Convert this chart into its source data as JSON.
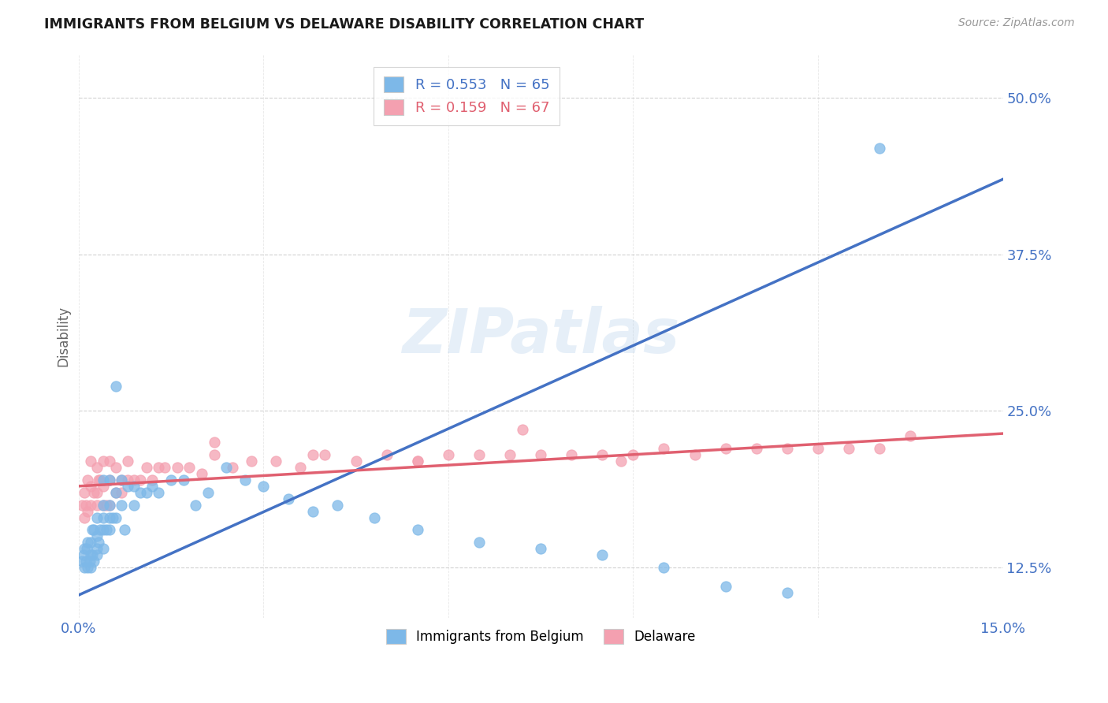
{
  "title": "IMMIGRANTS FROM BELGIUM VS DELAWARE DISABILITY CORRELATION CHART",
  "source_text": "Source: ZipAtlas.com",
  "ylabel": "Disability",
  "xlim": [
    0.0,
    0.15
  ],
  "ylim": [
    0.085,
    0.535
  ],
  "xticks": [
    0.0,
    0.03,
    0.06,
    0.09,
    0.12,
    0.15
  ],
  "xtick_labels": [
    "0.0%",
    "",
    "",
    "",
    "",
    "15.0%"
  ],
  "yticks": [
    0.125,
    0.25,
    0.375,
    0.5
  ],
  "ytick_labels": [
    "12.5%",
    "25.0%",
    "37.5%",
    "50.0%"
  ],
  "blue_R": 0.553,
  "blue_N": 65,
  "pink_R": 0.159,
  "pink_N": 67,
  "blue_color": "#7db8e8",
  "pink_color": "#f4a0b0",
  "blue_line_color": "#4472c4",
  "pink_line_color": "#e06070",
  "legend_label_blue": "Immigrants from Belgium",
  "legend_label_pink": "Delaware",
  "watermark": "ZIPatlas",
  "background_color": "#ffffff",
  "blue_line_x0": 0.0,
  "blue_line_y0": 0.103,
  "blue_line_x1": 0.15,
  "blue_line_y1": 0.435,
  "pink_line_x0": 0.0,
  "pink_line_y0": 0.19,
  "pink_line_x1": 0.15,
  "pink_line_y1": 0.232,
  "blue_scatter_x": [
    0.0005,
    0.0008,
    0.001,
    0.001,
    0.0012,
    0.0013,
    0.0015,
    0.0015,
    0.0018,
    0.002,
    0.002,
    0.002,
    0.0022,
    0.0022,
    0.0025,
    0.0025,
    0.003,
    0.003,
    0.003,
    0.003,
    0.0032,
    0.0035,
    0.004,
    0.004,
    0.004,
    0.004,
    0.004,
    0.0045,
    0.005,
    0.005,
    0.005,
    0.005,
    0.0055,
    0.006,
    0.006,
    0.006,
    0.007,
    0.007,
    0.0075,
    0.008,
    0.009,
    0.009,
    0.01,
    0.011,
    0.012,
    0.013,
    0.015,
    0.017,
    0.019,
    0.021,
    0.024,
    0.027,
    0.03,
    0.034,
    0.038,
    0.042,
    0.048,
    0.055,
    0.065,
    0.075,
    0.085,
    0.095,
    0.105,
    0.115,
    0.13
  ],
  "blue_scatter_y": [
    0.13,
    0.135,
    0.125,
    0.14,
    0.13,
    0.14,
    0.125,
    0.145,
    0.13,
    0.125,
    0.135,
    0.145,
    0.135,
    0.155,
    0.13,
    0.155,
    0.135,
    0.14,
    0.15,
    0.165,
    0.145,
    0.155,
    0.14,
    0.155,
    0.165,
    0.175,
    0.195,
    0.155,
    0.155,
    0.165,
    0.175,
    0.195,
    0.165,
    0.165,
    0.185,
    0.27,
    0.175,
    0.195,
    0.155,
    0.19,
    0.175,
    0.19,
    0.185,
    0.185,
    0.19,
    0.185,
    0.195,
    0.195,
    0.175,
    0.185,
    0.205,
    0.195,
    0.19,
    0.18,
    0.17,
    0.175,
    0.165,
    0.155,
    0.145,
    0.14,
    0.135,
    0.125,
    0.11,
    0.105,
    0.46
  ],
  "pink_scatter_x": [
    0.0005,
    0.001,
    0.001,
    0.0012,
    0.0015,
    0.0015,
    0.002,
    0.002,
    0.002,
    0.0025,
    0.003,
    0.003,
    0.003,
    0.0032,
    0.0035,
    0.004,
    0.004,
    0.004,
    0.0045,
    0.005,
    0.005,
    0.005,
    0.006,
    0.006,
    0.007,
    0.007,
    0.008,
    0.008,
    0.009,
    0.01,
    0.011,
    0.012,
    0.013,
    0.014,
    0.016,
    0.018,
    0.02,
    0.022,
    0.025,
    0.028,
    0.032,
    0.036,
    0.04,
    0.045,
    0.05,
    0.055,
    0.06,
    0.065,
    0.07,
    0.075,
    0.08,
    0.085,
    0.09,
    0.095,
    0.1,
    0.105,
    0.11,
    0.115,
    0.12,
    0.125,
    0.13,
    0.135,
    0.022,
    0.038,
    0.055,
    0.072,
    0.088
  ],
  "pink_scatter_y": [
    0.175,
    0.165,
    0.185,
    0.175,
    0.17,
    0.195,
    0.175,
    0.19,
    0.21,
    0.185,
    0.175,
    0.185,
    0.205,
    0.195,
    0.195,
    0.175,
    0.19,
    0.21,
    0.175,
    0.175,
    0.195,
    0.21,
    0.185,
    0.205,
    0.185,
    0.195,
    0.195,
    0.21,
    0.195,
    0.195,
    0.205,
    0.195,
    0.205,
    0.205,
    0.205,
    0.205,
    0.2,
    0.215,
    0.205,
    0.21,
    0.21,
    0.205,
    0.215,
    0.21,
    0.215,
    0.21,
    0.215,
    0.215,
    0.215,
    0.215,
    0.215,
    0.215,
    0.215,
    0.22,
    0.215,
    0.22,
    0.22,
    0.22,
    0.22,
    0.22,
    0.22,
    0.23,
    0.225,
    0.215,
    0.21,
    0.235,
    0.21
  ]
}
